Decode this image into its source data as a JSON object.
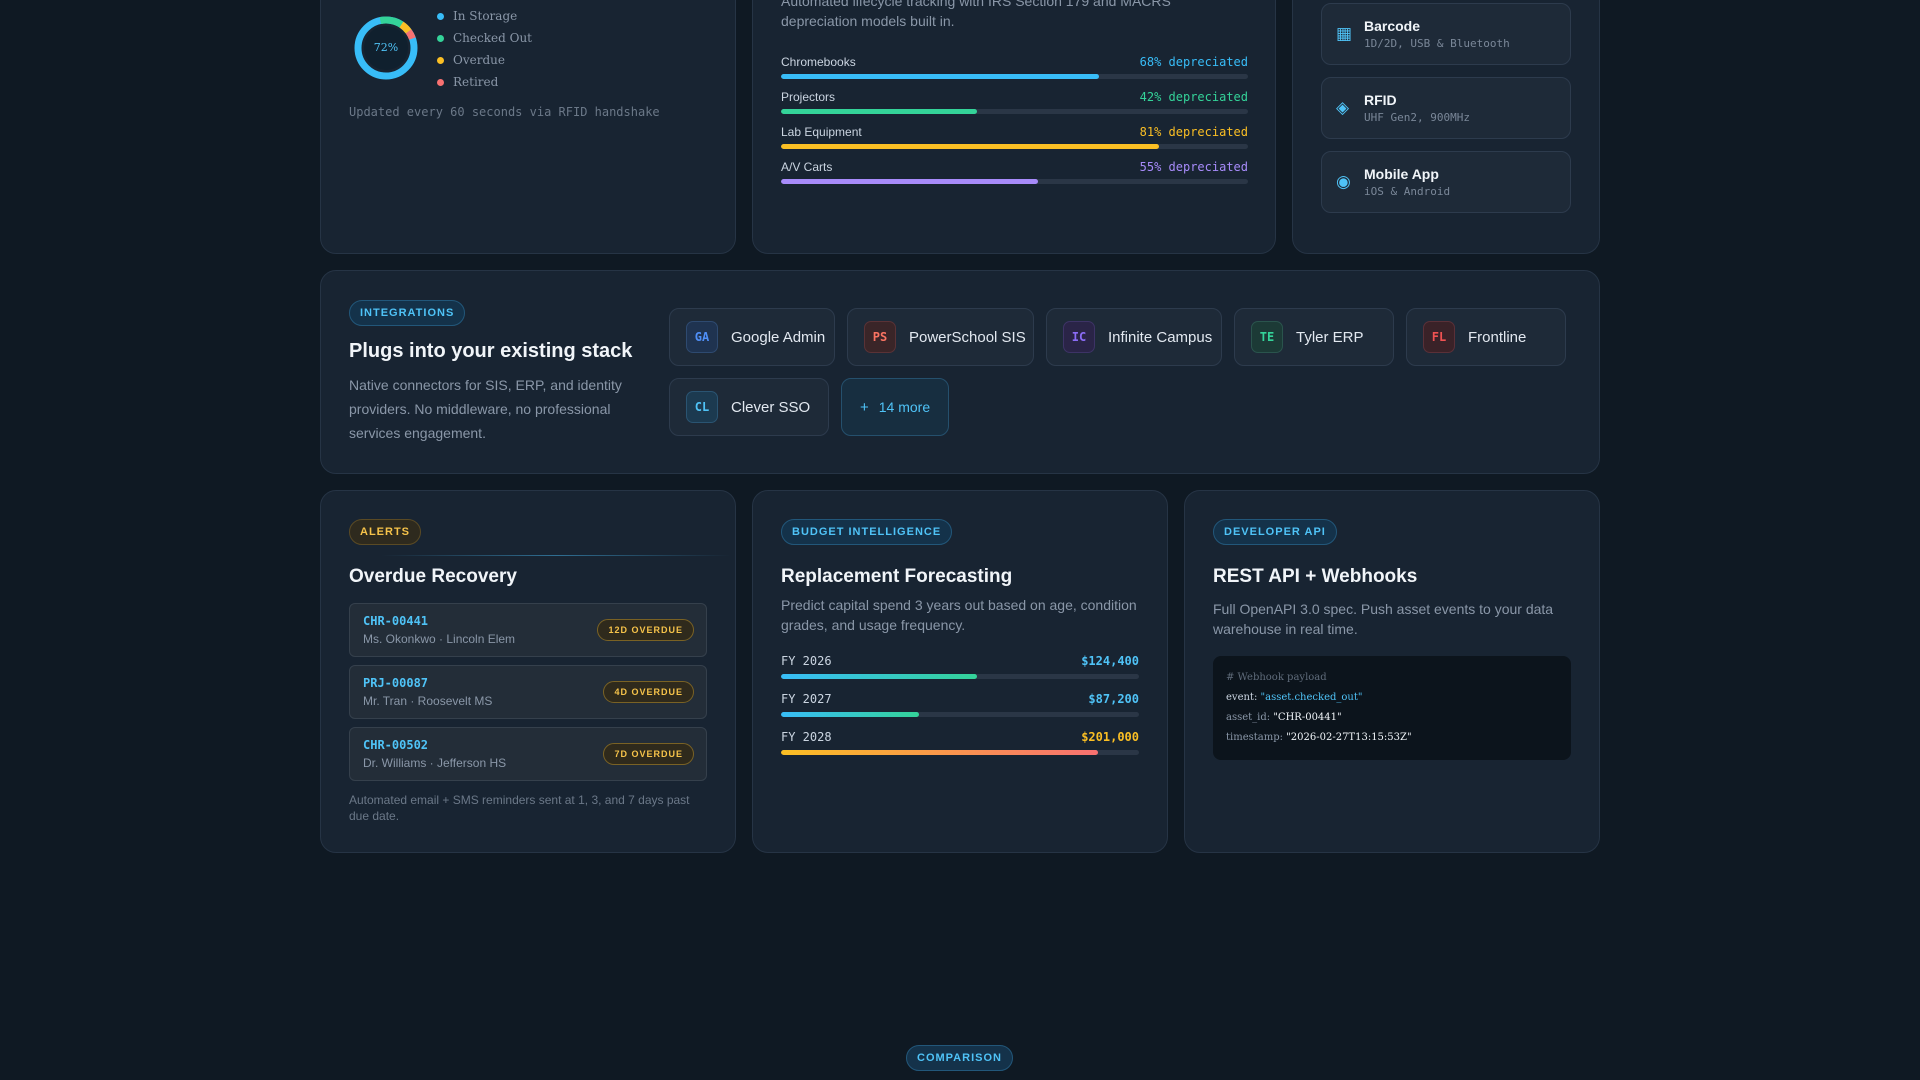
{
  "storage": {
    "donut_percent": "72%",
    "donut_fraction": 0.72,
    "legend": [
      {
        "label": "In Storage",
        "color": "#38bdf8"
      },
      {
        "label": "Checked Out",
        "color": "#34d399"
      },
      {
        "label": "Overdue",
        "color": "#fbbf24"
      },
      {
        "label": "Retired",
        "color": "#f87171"
      }
    ],
    "footnote": "Updated every 60 seconds via RFID handshake"
  },
  "depreciation": {
    "desc": "Automated lifecycle tracking with IRS Section 179 and MACRS depreciation models built in.",
    "items": [
      {
        "name": "Chromebooks",
        "pct_label": "68% depreciated",
        "value": 0.68,
        "color": "#38bdf8"
      },
      {
        "name": "Projectors",
        "pct_label": "42% depreciated",
        "value": 0.42,
        "color": "#34d399"
      },
      {
        "name": "Lab Equipment",
        "pct_label": "81% depreciated",
        "value": 0.81,
        "color": "#fbbf24"
      },
      {
        "name": "A/V Carts",
        "pct_label": "55% depreciated",
        "value": 0.55,
        "color": "#a78bfa"
      }
    ]
  },
  "scanning": {
    "options": [
      {
        "name": "Barcode",
        "sub": "1D/2D, USB & Bluetooth",
        "icon": "barcode-icon",
        "glyph": "▦"
      },
      {
        "name": "RFID",
        "sub": "UHF Gen2, 900MHz",
        "icon": "rfid-icon",
        "glyph": "◈"
      },
      {
        "name": "Mobile App",
        "sub": "iOS & Android",
        "icon": "mobile-icon",
        "glyph": "◉"
      }
    ]
  },
  "integrations": {
    "tag": "INTEGRATIONS",
    "title": "Plugs into your existing stack",
    "desc": "Native connectors for SIS, ERP, and identity providers. No middleware, no professional services engagement.",
    "chips": [
      {
        "abbr": "GA",
        "label": "Google Admin",
        "color": "#4f8ff7",
        "bg": "#1f3350"
      },
      {
        "abbr": "PS",
        "label": "PowerSchool SIS",
        "color": "#f97362",
        "bg": "#3a2528"
      },
      {
        "abbr": "IC",
        "label": "Infinite Campus",
        "color": "#8b6cf6",
        "bg": "#2a2447"
      },
      {
        "abbr": "TE",
        "label": "Tyler ERP",
        "color": "#34d399",
        "bg": "#1c3a36"
      },
      {
        "abbr": "FL",
        "label": "Frontline",
        "color": "#f05252",
        "bg": "#3a2228"
      },
      {
        "abbr": "CL",
        "label": "Clever SSO",
        "color": "#4fc3f7",
        "bg": "#1c3a50"
      }
    ],
    "more": {
      "plus": "+",
      "label": "14 more"
    }
  },
  "alerts": {
    "tag": "ALERTS",
    "title": "Overdue Recovery",
    "rows": [
      {
        "id": "CHR-00441",
        "who": "Ms. Okonkwo · Lincoln Elem",
        "badge": "12D OVERDUE"
      },
      {
        "id": "PRJ-00087",
        "who": "Mr. Tran · Roosevelt MS",
        "badge": "4D OVERDUE"
      },
      {
        "id": "CHR-00502",
        "who": "Dr. Williams · Jefferson HS",
        "badge": "7D OVERDUE"
      }
    ],
    "footnote": "Automated email + SMS reminders sent at 1, 3, and 7 days past due date."
  },
  "budget": {
    "tag": "BUDGET INTELLIGENCE",
    "title": "Replacement Forecasting",
    "desc": "Predict capital spend 3 years out based on age, condition grades, and usage frequency.",
    "rows": [
      {
        "year": "FY 2026",
        "amount": "$124,400",
        "value": 124400,
        "amount_color": "#4fc3f7",
        "gradient": "linear-gradient(90deg,#38bdf8,#34d399)"
      },
      {
        "year": "FY 2027",
        "amount": "$87,200",
        "value": 87200,
        "amount_color": "#4fc3f7",
        "gradient": "linear-gradient(90deg,#38bdf8,#34d399)"
      },
      {
        "year": "FY 2028",
        "amount": "$201,000",
        "value": 201000,
        "amount_color": "#fbbf24",
        "gradient": "linear-gradient(90deg,#fbbf24,#f87171)"
      }
    ],
    "scale_max": 227000
  },
  "api": {
    "tag": "DEVELOPER API",
    "title": "REST API + Webhooks",
    "desc": "Full OpenAPI 3.0 spec. Push asset events to your data warehouse in real time.",
    "code": {
      "comment": "# Webhook payload",
      "event_key": "event:",
      "event_val": "\"asset.checked_out\"",
      "asset_key": "asset_id:",
      "asset_val": "\"CHR-00441\"",
      "ts_key": "timestamp:",
      "ts_val": "\"2026-02-27T13:15:53Z\""
    }
  },
  "comparison_tag": "COMPARISON"
}
